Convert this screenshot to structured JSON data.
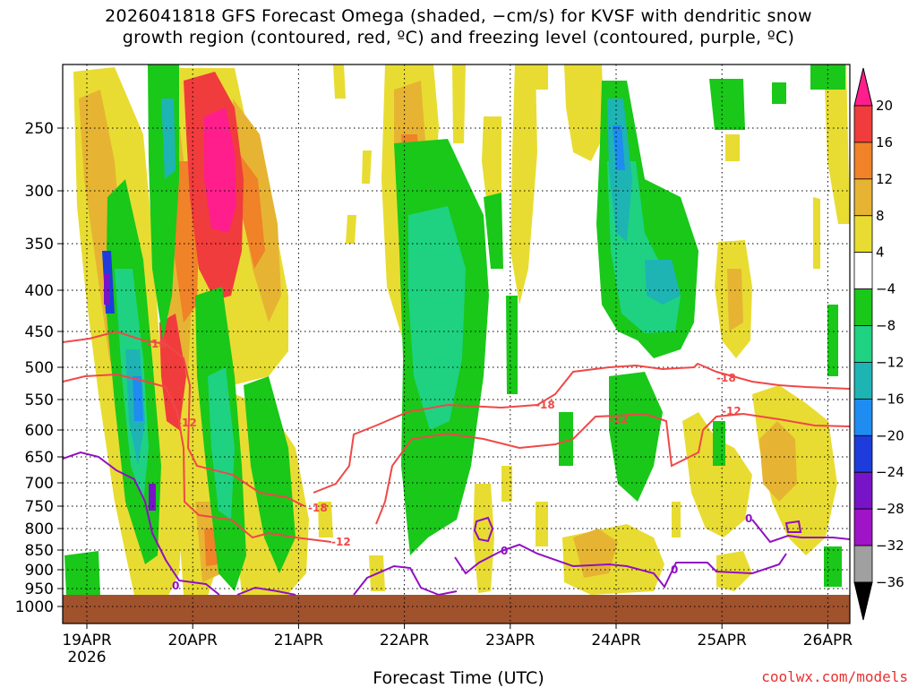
{
  "title": {
    "line1": "2026041818 GFS Forecast Omega (shaded, −cm/s) for KVSF with dendritic snow",
    "line2": "growth region (contoured, red, ºC) and freezing level (contoured, purple, ºC)"
  },
  "xlabel": "Forecast Time (UTC)",
  "credit": "coolwx.com/models",
  "colors": {
    "dendritic_contour": "#f04848",
    "freezing_contour": "#9010c0",
    "ground": "#a0522d",
    "grid": "#000000"
  },
  "chart_data": {
    "type": "heatmap",
    "y_scale": "pressure (inverted, log-like)",
    "y_ticks": [
      250,
      300,
      350,
      400,
      450,
      500,
      550,
      600,
      650,
      700,
      750,
      800,
      850,
      900,
      950,
      1000
    ],
    "x_ticks": [
      {
        "label": "19APR",
        "sub": "2026"
      },
      {
        "label": "20APR",
        "sub": ""
      },
      {
        "label": "21APR",
        "sub": ""
      },
      {
        "label": "22APR",
        "sub": ""
      },
      {
        "label": "23APR",
        "sub": ""
      },
      {
        "label": "24APR",
        "sub": ""
      },
      {
        "label": "25APR",
        "sub": ""
      },
      {
        "label": "26APR",
        "sub": ""
      }
    ],
    "grid": "dotted",
    "colorbar": {
      "labels": [
        "20",
        "16",
        "12",
        "8",
        "4",
        "−4",
        "−8",
        "−12",
        "−16",
        "−20",
        "−24",
        "−28",
        "−32",
        "−36"
      ],
      "colors": [
        "#ff1e8c",
        "#f03c3c",
        "#f08228",
        "#e6b432",
        "#e8dc32",
        "#ffffff",
        "#19c819",
        "#1ed282",
        "#1eb4b4",
        "#1e8cf0",
        "#1e3cdc",
        "#7814c8",
        "#a014c8",
        "#a0a0a0",
        "#000000"
      ]
    },
    "contour_labels": {
      "dendritic": [
        "-18",
        "-12",
        "-18",
        "-12",
        "-18",
        "-12",
        "-18",
        "-12"
      ],
      "freezing": [
        "0",
        "0",
        "0",
        "0",
        "0"
      ]
    }
  }
}
